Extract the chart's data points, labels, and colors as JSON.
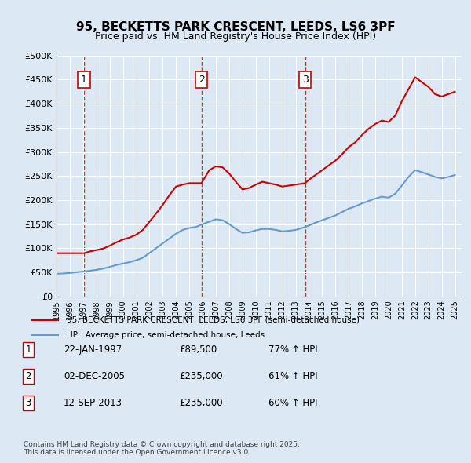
{
  "title": "95, BECKETTS PARK CRESCENT, LEEDS, LS6 3PF",
  "subtitle": "Price paid vs. HM Land Registry's House Price Index (HPI)",
  "background_color": "#dce9f5",
  "plot_bg_color": "#dce9f5",
  "ylim": [
    0,
    500000
  ],
  "yticks": [
    0,
    50000,
    100000,
    150000,
    200000,
    250000,
    300000,
    350000,
    400000,
    450000,
    500000
  ],
  "xlim_start": 1995.0,
  "xlim_end": 2025.5,
  "purchase_dates": [
    1997.06,
    2005.92,
    2013.71
  ],
  "purchase_prices": [
    89500,
    235000,
    235000
  ],
  "purchase_labels": [
    "1",
    "2",
    "3"
  ],
  "legend_label_red": "95, BECKETTS PARK CRESCENT, LEEDS, LS6 3PF (semi-detached house)",
  "legend_label_blue": "HPI: Average price, semi-detached house, Leeds",
  "table_entries": [
    {
      "num": "1",
      "date": "22-JAN-1997",
      "price": "£89,500",
      "change": "77% ↑ HPI"
    },
    {
      "num": "2",
      "date": "02-DEC-2005",
      "price": "£235,000",
      "change": "61% ↑ HPI"
    },
    {
      "num": "3",
      "date": "12-SEP-2013",
      "price": "£235,000",
      "change": "60% ↑ HPI"
    }
  ],
  "footnote": "Contains HM Land Registry data © Crown copyright and database right 2025.\nThis data is licensed under the Open Government Licence v3.0.",
  "red_color": "#cc0000",
  "blue_color": "#6699cc",
  "dashed_color": "#cc0000",
  "hpi_base_value": 48000,
  "hpi_start_year": 1995,
  "red_line_data": {
    "years": [
      1995.0,
      1995.5,
      1996.0,
      1996.5,
      1997.06,
      1997.5,
      1998.0,
      1998.5,
      1999.0,
      1999.5,
      2000.0,
      2000.5,
      2001.0,
      2001.5,
      2002.0,
      2002.5,
      2003.0,
      2003.5,
      2004.0,
      2004.5,
      2005.0,
      2005.5,
      2005.92,
      2006.5,
      2007.0,
      2007.5,
      2008.0,
      2008.5,
      2009.0,
      2009.5,
      2010.0,
      2010.5,
      2011.0,
      2011.5,
      2012.0,
      2012.5,
      2013.0,
      2013.71,
      2014.0,
      2014.5,
      2015.0,
      2015.5,
      2016.0,
      2016.5,
      2017.0,
      2017.5,
      2018.0,
      2018.5,
      2019.0,
      2019.5,
      2020.0,
      2020.5,
      2021.0,
      2021.5,
      2022.0,
      2022.5,
      2023.0,
      2023.5,
      2024.0,
      2024.5,
      2025.0
    ],
    "values": [
      89500,
      89500,
      89500,
      89500,
      89500,
      93000,
      96000,
      99000,
      105000,
      112000,
      118000,
      122000,
      128000,
      138000,
      155000,
      172000,
      190000,
      210000,
      228000,
      232000,
      235000,
      235000,
      235000,
      262000,
      270000,
      268000,
      255000,
      238000,
      222000,
      225000,
      232000,
      238000,
      235000,
      232000,
      228000,
      230000,
      232000,
      235000,
      242000,
      252000,
      262000,
      272000,
      282000,
      295000,
      310000,
      320000,
      335000,
      348000,
      358000,
      365000,
      362000,
      375000,
      405000,
      430000,
      455000,
      445000,
      435000,
      420000,
      415000,
      420000,
      425000
    ]
  },
  "blue_line_data": {
    "years": [
      1995.0,
      1995.5,
      1996.0,
      1996.5,
      1997.0,
      1997.5,
      1998.0,
      1998.5,
      1999.0,
      1999.5,
      2000.0,
      2000.5,
      2001.0,
      2001.5,
      2002.0,
      2002.5,
      2003.0,
      2003.5,
      2004.0,
      2004.5,
      2005.0,
      2005.5,
      2006.0,
      2006.5,
      2007.0,
      2007.5,
      2008.0,
      2008.5,
      2009.0,
      2009.5,
      2010.0,
      2010.5,
      2011.0,
      2011.5,
      2012.0,
      2012.5,
      2013.0,
      2013.5,
      2014.0,
      2014.5,
      2015.0,
      2015.5,
      2016.0,
      2016.5,
      2017.0,
      2017.5,
      2018.0,
      2018.5,
      2019.0,
      2019.5,
      2020.0,
      2020.5,
      2021.0,
      2021.5,
      2022.0,
      2022.5,
      2023.0,
      2023.5,
      2024.0,
      2024.5,
      2025.0
    ],
    "values": [
      47000,
      47500,
      48500,
      50000,
      51500,
      53000,
      55000,
      57500,
      61000,
      65000,
      68000,
      71000,
      75000,
      80000,
      90000,
      100000,
      110000,
      120000,
      130000,
      138000,
      142000,
      144000,
      150000,
      155000,
      160000,
      158000,
      150000,
      140000,
      132000,
      133000,
      137000,
      140000,
      140000,
      138000,
      135000,
      136000,
      138000,
      142000,
      147000,
      153000,
      158000,
      163000,
      168000,
      175000,
      182000,
      187000,
      193000,
      198000,
      203000,
      207000,
      205000,
      213000,
      230000,
      248000,
      262000,
      258000,
      253000,
      248000,
      245000,
      248000,
      252000
    ]
  }
}
